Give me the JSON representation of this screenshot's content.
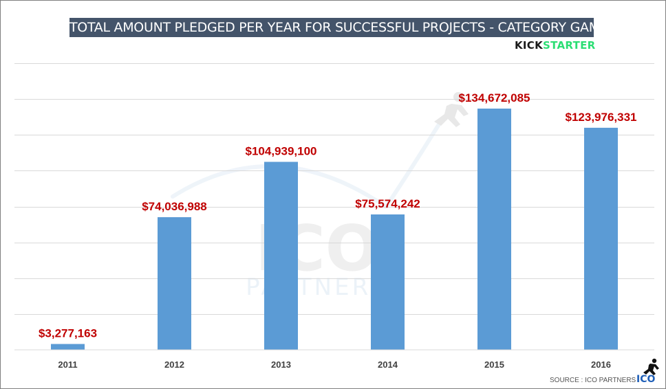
{
  "chart_data": {
    "type": "bar",
    "title": "TOTAL AMOUNT PLEDGED PER YEAR FOR SUCCESSFUL PROJECTS - CATEGORY GAMES",
    "categories": [
      "2011",
      "2012",
      "2013",
      "2014",
      "2015",
      "2016"
    ],
    "values": [
      3277163,
      74036988,
      104939100,
      75574242,
      134672085,
      123976331
    ],
    "data_labels": [
      "$3,277,163",
      "$74,036,988",
      "$104,939,100",
      "$75,574,242",
      "$134,672,085",
      "$123,976,331"
    ],
    "xlabel": "",
    "ylabel": "",
    "ylim": [
      0,
      160000000
    ],
    "y_gridline_step": 20000000,
    "grid": true,
    "bar_color": "#5b9bd5",
    "label_color": "#c00000"
  },
  "header": {
    "brand_part1": "KICK",
    "brand_part2": "STARTER"
  },
  "watermark": {
    "line1": "ICO",
    "line2": "PARTNERS"
  },
  "footer": {
    "source": "SOURCE : ICO PARTNERS",
    "logo_text": "ICO"
  },
  "colors": {
    "title_bg": "#44546a",
    "brand_green": "#2bde73",
    "grid": "#d9d9d9",
    "logo_blue": "#1f5fb8"
  }
}
